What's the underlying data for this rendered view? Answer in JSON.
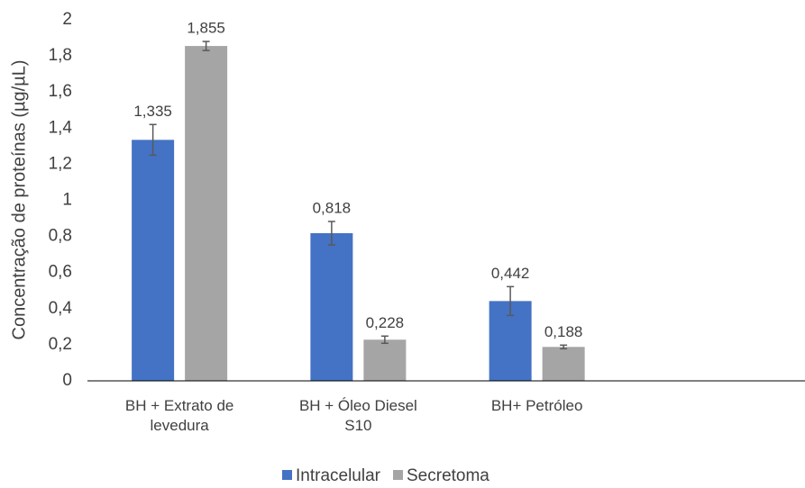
{
  "chart_data": {
    "type": "bar",
    "y_label": "Concentração de proteínas (µg/µL)",
    "categories": [
      "BH + Extrato de levedura",
      "BH + Óleo Diesel S10",
      "BH+ Petróleo",
      null
    ],
    "series": [
      {
        "name": "Intracelular",
        "color": "#4472c4",
        "values": [
          1.335,
          0.818,
          0.442,
          null
        ],
        "value_labels": [
          "1,335",
          "0,818",
          "0,442",
          null
        ],
        "errors": [
          0.085,
          0.065,
          0.08,
          null
        ]
      },
      {
        "name": "Secretoma",
        "color": "#a5a5a5",
        "values": [
          1.855,
          0.228,
          0.188,
          null
        ],
        "value_labels": [
          "1,855",
          "0,228",
          "0,188",
          null
        ],
        "errors": [
          0.025,
          0.02,
          0.01,
          null
        ]
      }
    ],
    "ylim": [
      0,
      2
    ],
    "yticks": [
      0,
      {
        "value": 0.2,
        "label": "0,2"
      },
      {
        "value": 0.4,
        "label": "0,4"
      },
      {
        "value": 0.6,
        "label": "0,6"
      },
      {
        "value": 0.8,
        "label": "0,8"
      },
      1,
      {
        "value": 1.2,
        "label": "1,2"
      },
      {
        "value": 1.4,
        "label": "1,4"
      },
      {
        "value": 1.6,
        "label": "1,6"
      },
      {
        "value": 1.8,
        "label": "1,8"
      },
      2
    ],
    "grid": false,
    "legend": "bottom"
  }
}
